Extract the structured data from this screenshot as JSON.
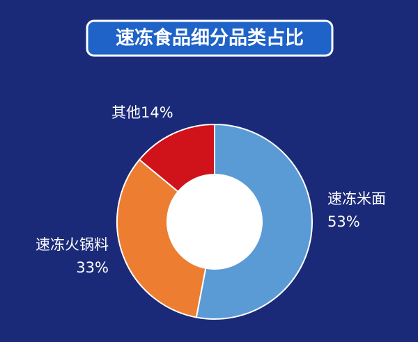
{
  "chart_data": {
    "type": "donut",
    "title": "速冻食品细分品类占比",
    "categories": [
      "速冻米面",
      "速冻火锅料",
      "其他"
    ],
    "values": [
      53,
      33,
      14
    ],
    "value_labels": [
      "53%",
      "33%",
      "14%"
    ],
    "colors": [
      "#5b9bd5",
      "#ed7d31",
      "#d0121b"
    ]
  }
}
